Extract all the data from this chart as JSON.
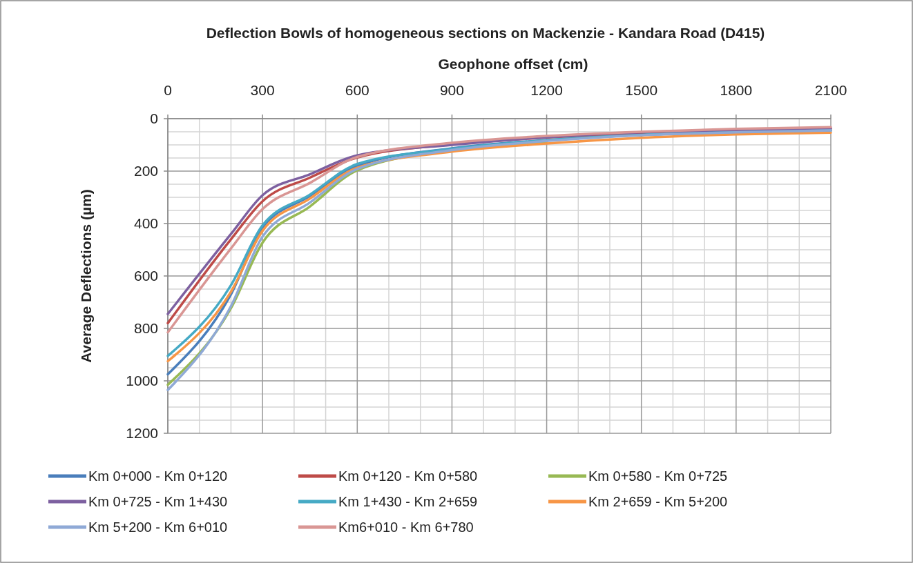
{
  "chart_data": {
    "type": "line",
    "title": "Deflection Bowls of homogeneous sections on Mackenzie - Kandara Road (D415)",
    "xlabel": "Geophone offset (cm)",
    "ylabel": "Average Deflections (µm)",
    "x": [
      0,
      200,
      300,
      450,
      600,
      900,
      1200,
      1500,
      1800,
      2100
    ],
    "xlim": [
      0,
      2100
    ],
    "xticks": [
      0,
      300,
      600,
      900,
      1200,
      1500,
      1800,
      2100
    ],
    "ylim": [
      1200,
      0
    ],
    "yticks": [
      0,
      200,
      400,
      600,
      800,
      1000,
      1200
    ],
    "grid": true,
    "legend": "bottom",
    "marker": "none",
    "line_style": "solid",
    "series": [
      {
        "name": "Km 0+000 - Km 0+120",
        "color": "#4a7ebb",
        "values": [
          975,
          670,
          415,
          295,
          180,
          113,
          82,
          62,
          52,
          45
        ]
      },
      {
        "name": "Km 0+120 - Km 0+580",
        "color": "#be4b48",
        "values": [
          780,
          460,
          315,
          225,
          148,
          98,
          72,
          55,
          45,
          38
        ]
      },
      {
        "name": "Km 0+580 - Km 0+725",
        "color": "#98b954",
        "values": [
          1015,
          723,
          473,
          335,
          197,
          120,
          88,
          null,
          null,
          null
        ]
      },
      {
        "name": "Km 0+725 - Km 1+430",
        "color": "#7d60a0",
        "values": [
          745,
          440,
          292,
          212,
          140,
          100,
          71,
          52,
          44,
          37
        ]
      },
      {
        "name": "Km 1+430 - Km 2+659",
        "color": "#46aac5",
        "values": [
          905,
          635,
          407,
          290,
          173,
          115,
          82,
          62,
          52,
          45
        ]
      },
      {
        "name": "Km 2+659 - Km 5+200",
        "color": "#f79646",
        "values": [
          925,
          660,
          428,
          305,
          187,
          126,
          95,
          73,
          60,
          53
        ]
      },
      {
        "name": "Km 5+200 - Km 6+010",
        "color": "#8fa9d6",
        "values": [
          1035,
          715,
          450,
          320,
          192,
          120,
          85,
          63,
          52,
          45
        ]
      },
      {
        "name": "Km6+010 - Km 6+780",
        "color": "#d99694",
        "values": [
          815,
          495,
          345,
          245,
          146,
          92,
          66,
          50,
          39,
          32
        ]
      }
    ]
  }
}
